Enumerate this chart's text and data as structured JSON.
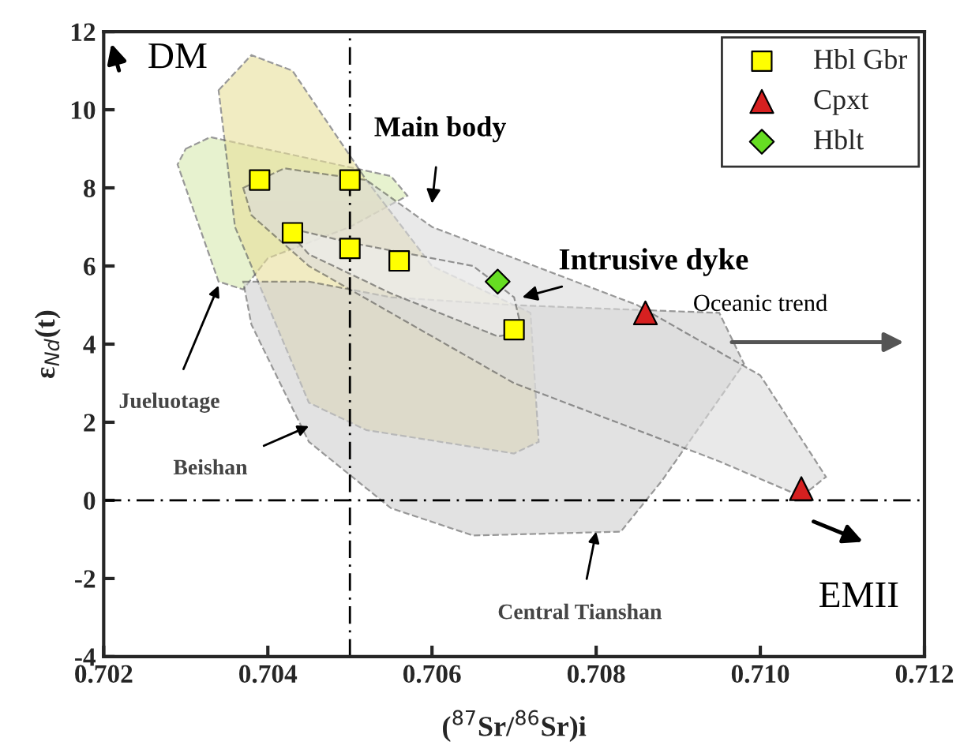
{
  "chart_data": {
    "type": "scatter",
    "xlabel": "($^{87}$Sr/$^{86}$Sr)i",
    "ylabel": "ε$_{Nd}$(t)",
    "xlim": [
      0.702,
      0.712
    ],
    "xticks": [
      {
        "value": 0.702,
        "label": "0.702"
      },
      {
        "value": 0.704,
        "label": "0.704"
      },
      {
        "value": 0.706,
        "label": "0.706"
      },
      {
        "value": 0.708,
        "label": "0.708"
      },
      {
        "value": 0.71,
        "label": "0.710"
      },
      {
        "value": 0.712,
        "label": "0.712"
      }
    ],
    "ylim": [
      -4,
      12
    ],
    "yticks": [
      -4,
      -2,
      0,
      2,
      4,
      6,
      8,
      10,
      12
    ],
    "series": [
      {
        "name": "Hbl Gbr",
        "color": "#ffff00",
        "marker": "square",
        "x": [
          0.7039,
          0.705,
          0.7043,
          0.705,
          0.7056,
          0.707
        ],
        "values": [
          8.2,
          8.2,
          6.85,
          6.45,
          6.13,
          4.37
        ]
      },
      {
        "name": "Cpxt",
        "color": "#d62020",
        "marker": "triangle",
        "x": [
          0.7086,
          0.7105
        ],
        "values": [
          4.8,
          0.3
        ]
      },
      {
        "name": "Hblt",
        "color": "#66dd22",
        "marker": "diamond",
        "x": [
          0.7068
        ],
        "values": [
          5.6
        ]
      }
    ],
    "ref_lines": [
      {
        "axis": "x",
        "value": 0.705,
        "line_style": "dashdot"
      },
      {
        "axis": "y",
        "value": 0,
        "line_style": "dashdot"
      }
    ],
    "annotations": [
      "DM",
      "Main body",
      "Intrusive dyke",
      "Oceanic trend",
      "Jueluotage",
      "Beishan",
      "Central Tianshan",
      "EMII"
    ],
    "legend": "top right",
    "grid": false
  }
}
